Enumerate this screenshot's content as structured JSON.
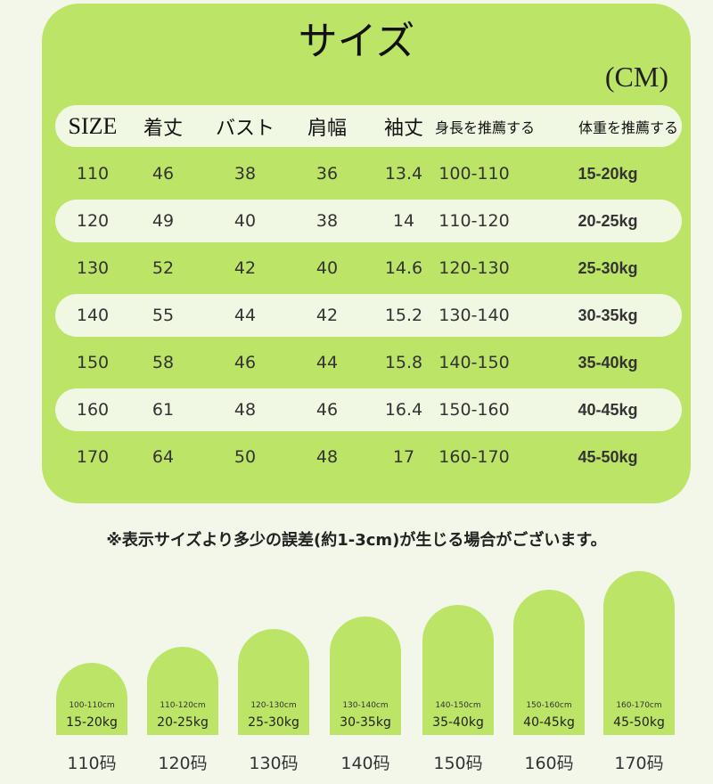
{
  "title": "サイズ",
  "unit": "(CM)",
  "headers": [
    "SIZE",
    "着丈",
    "バスト",
    "肩幅",
    "袖丈",
    "身長を推薦する",
    "体重を推薦する"
  ],
  "rows": [
    [
      "110",
      "46",
      "38",
      "36",
      "13.4",
      "100-110",
      "15-20kg"
    ],
    [
      "120",
      "49",
      "40",
      "38",
      "14",
      "110-120",
      "20-25kg"
    ],
    [
      "130",
      "52",
      "42",
      "40",
      "14.6",
      "120-130",
      "25-30kg"
    ],
    [
      "140",
      "55",
      "44",
      "42",
      "15.2",
      "130-140",
      "30-35kg"
    ],
    [
      "150",
      "58",
      "46",
      "44",
      "15.8",
      "140-150",
      "35-40kg"
    ],
    [
      "160",
      "61",
      "48",
      "46",
      "16.4",
      "150-160",
      "40-45kg"
    ],
    [
      "170",
      "64",
      "50",
      "48",
      "17",
      "160-170",
      "45-50kg"
    ]
  ],
  "note": "※表示サイズより多少の誤差(約1-3cm)が生じる場合がございます。",
  "bars": [
    {
      "height": "100-110cm",
      "weight": "15-20kg",
      "label": "110码"
    },
    {
      "height": "110-120cm",
      "weight": "20-25kg",
      "label": "120码"
    },
    {
      "height": "120-130cm",
      "weight": "25-30kg",
      "label": "130码"
    },
    {
      "height": "130-140cm",
      "weight": "30-35kg",
      "label": "140码"
    },
    {
      "height": "140-150cm",
      "weight": "35-40kg",
      "label": "150码"
    },
    {
      "height": "150-160cm",
      "weight": "40-45kg",
      "label": "160码"
    },
    {
      "height": "160-170cm",
      "weight": "45-50kg",
      "label": "170码"
    }
  ],
  "colors": {
    "accent": "#bce466",
    "pill": "#f0f7e2",
    "background": "#f2f7ea"
  }
}
